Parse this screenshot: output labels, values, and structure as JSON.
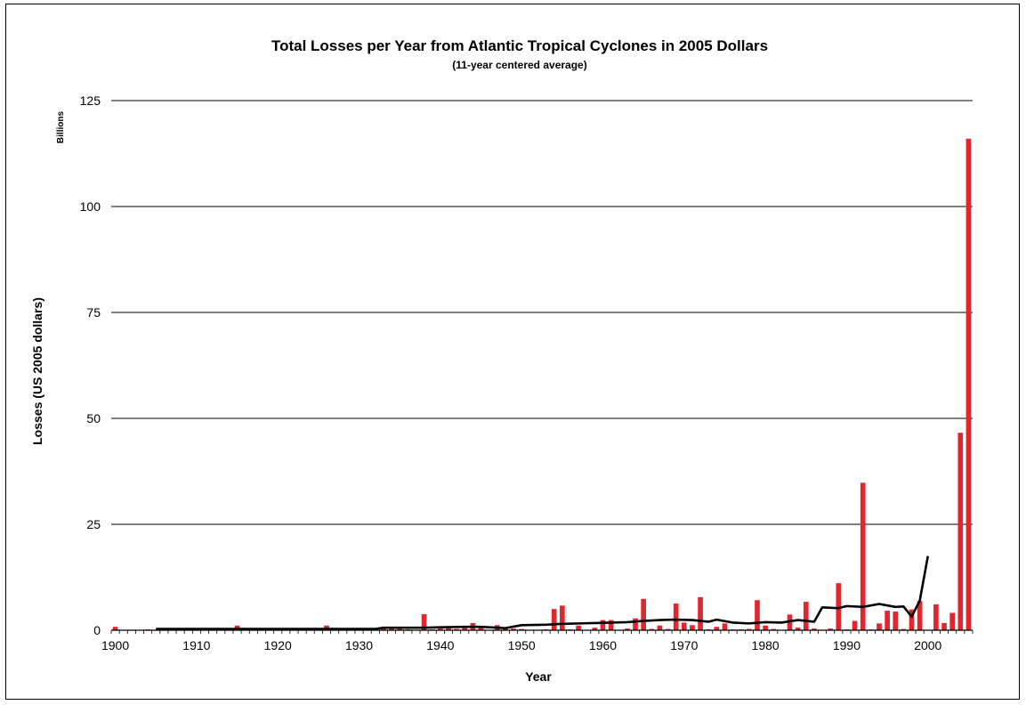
{
  "chart_data": {
    "type": "bar",
    "title": "Total Losses per Year from Atlantic Tropical Cyclones in 2005 Dollars",
    "subtitle": "(11-year centered average)",
    "xlabel": "Year",
    "ylabel": "Losses (US 2005 dollars)",
    "yunit": "Billions",
    "ylim": [
      0,
      125
    ],
    "yticks": [
      0,
      25,
      50,
      75,
      100,
      125
    ],
    "xticks": [
      1900,
      1910,
      1920,
      1930,
      1940,
      1950,
      1960,
      1970,
      1980,
      1990,
      2000
    ],
    "grid": "horizontal",
    "bar_color": "#e0262e",
    "line_color": "#000000",
    "categories": [
      1900,
      1901,
      1902,
      1903,
      1904,
      1905,
      1906,
      1907,
      1908,
      1909,
      1910,
      1911,
      1912,
      1913,
      1914,
      1915,
      1916,
      1917,
      1918,
      1919,
      1920,
      1921,
      1922,
      1923,
      1924,
      1925,
      1926,
      1927,
      1928,
      1929,
      1930,
      1931,
      1932,
      1933,
      1934,
      1935,
      1936,
      1937,
      1938,
      1939,
      1940,
      1941,
      1942,
      1943,
      1944,
      1945,
      1946,
      1947,
      1948,
      1949,
      1950,
      1951,
      1952,
      1953,
      1954,
      1955,
      1956,
      1957,
      1958,
      1959,
      1960,
      1961,
      1962,
      1963,
      1964,
      1965,
      1966,
      1967,
      1968,
      1969,
      1970,
      1971,
      1972,
      1973,
      1974,
      1975,
      1976,
      1977,
      1978,
      1979,
      1980,
      1981,
      1982,
      1983,
      1984,
      1985,
      1986,
      1987,
      1988,
      1989,
      1990,
      1991,
      1992,
      1993,
      1994,
      1995,
      1996,
      1997,
      1998,
      1999,
      2000,
      2001,
      2002,
      2003,
      2004,
      2005
    ],
    "series": [
      {
        "type": "bar",
        "values": [
          0.8,
          0,
          0,
          0,
          0.2,
          0,
          0.2,
          0.1,
          0.1,
          0.3,
          0.2,
          0.1,
          0.1,
          0.1,
          0,
          1.1,
          0.4,
          0.2,
          0.2,
          0.3,
          0.1,
          0.3,
          0,
          0,
          0.1,
          0.1,
          1.1,
          0.1,
          0.3,
          0.1,
          0.1,
          0.1,
          0.3,
          0.5,
          0.4,
          0.3,
          0.2,
          0.1,
          3.8,
          0.2,
          0.4,
          0.5,
          0.3,
          0.6,
          1.7,
          0.9,
          0.1,
          1.2,
          0.6,
          0.4,
          0.3,
          0.1,
          0.1,
          0.2,
          5.0,
          5.8,
          0.2,
          1.1,
          0.1,
          0.6,
          2.4,
          2.4,
          0.1,
          0.4,
          2.8,
          7.4,
          0.3,
          1.1,
          0.3,
          6.3,
          1.8,
          1.2,
          7.8,
          0.2,
          0.8,
          1.6,
          0.2,
          0.2,
          0.3,
          7.1,
          1.1,
          0.3,
          0.1,
          3.7,
          0.6,
          6.7,
          0.4,
          0.1,
          0.4,
          11.1,
          0.2,
          2.2,
          34.8,
          0.2,
          1.6,
          4.6,
          4.4,
          0.3,
          4.9,
          6.9,
          0.1,
          6.1,
          1.7,
          4.1,
          46.6,
          116.0
        ]
      },
      {
        "type": "line",
        "x": [
          1905,
          1910,
          1915,
          1920,
          1925,
          1930,
          1932,
          1933,
          1935,
          1938,
          1940,
          1943,
          1945,
          1948,
          1950,
          1953,
          1955,
          1957,
          1959,
          1961,
          1963,
          1965,
          1967,
          1969,
          1971,
          1973,
          1974,
          1976,
          1978,
          1980,
          1982,
          1984,
          1986,
          1987,
          1989,
          1990,
          1992,
          1994,
          1996,
          1997,
          1998,
          1999,
          2000
        ],
        "y": [
          0.3,
          0.3,
          0.3,
          0.3,
          0.3,
          0.3,
          0.3,
          0.6,
          0.6,
          0.6,
          0.7,
          0.8,
          0.8,
          0.5,
          1.2,
          1.3,
          1.5,
          1.6,
          1.7,
          1.8,
          1.9,
          2.2,
          2.4,
          2.5,
          2.4,
          2.0,
          2.5,
          1.8,
          1.6,
          1.9,
          1.8,
          2.4,
          2.0,
          5.4,
          5.2,
          5.7,
          5.5,
          6.2,
          5.5,
          5.6,
          3.2,
          7.0,
          17.5
        ]
      }
    ]
  }
}
